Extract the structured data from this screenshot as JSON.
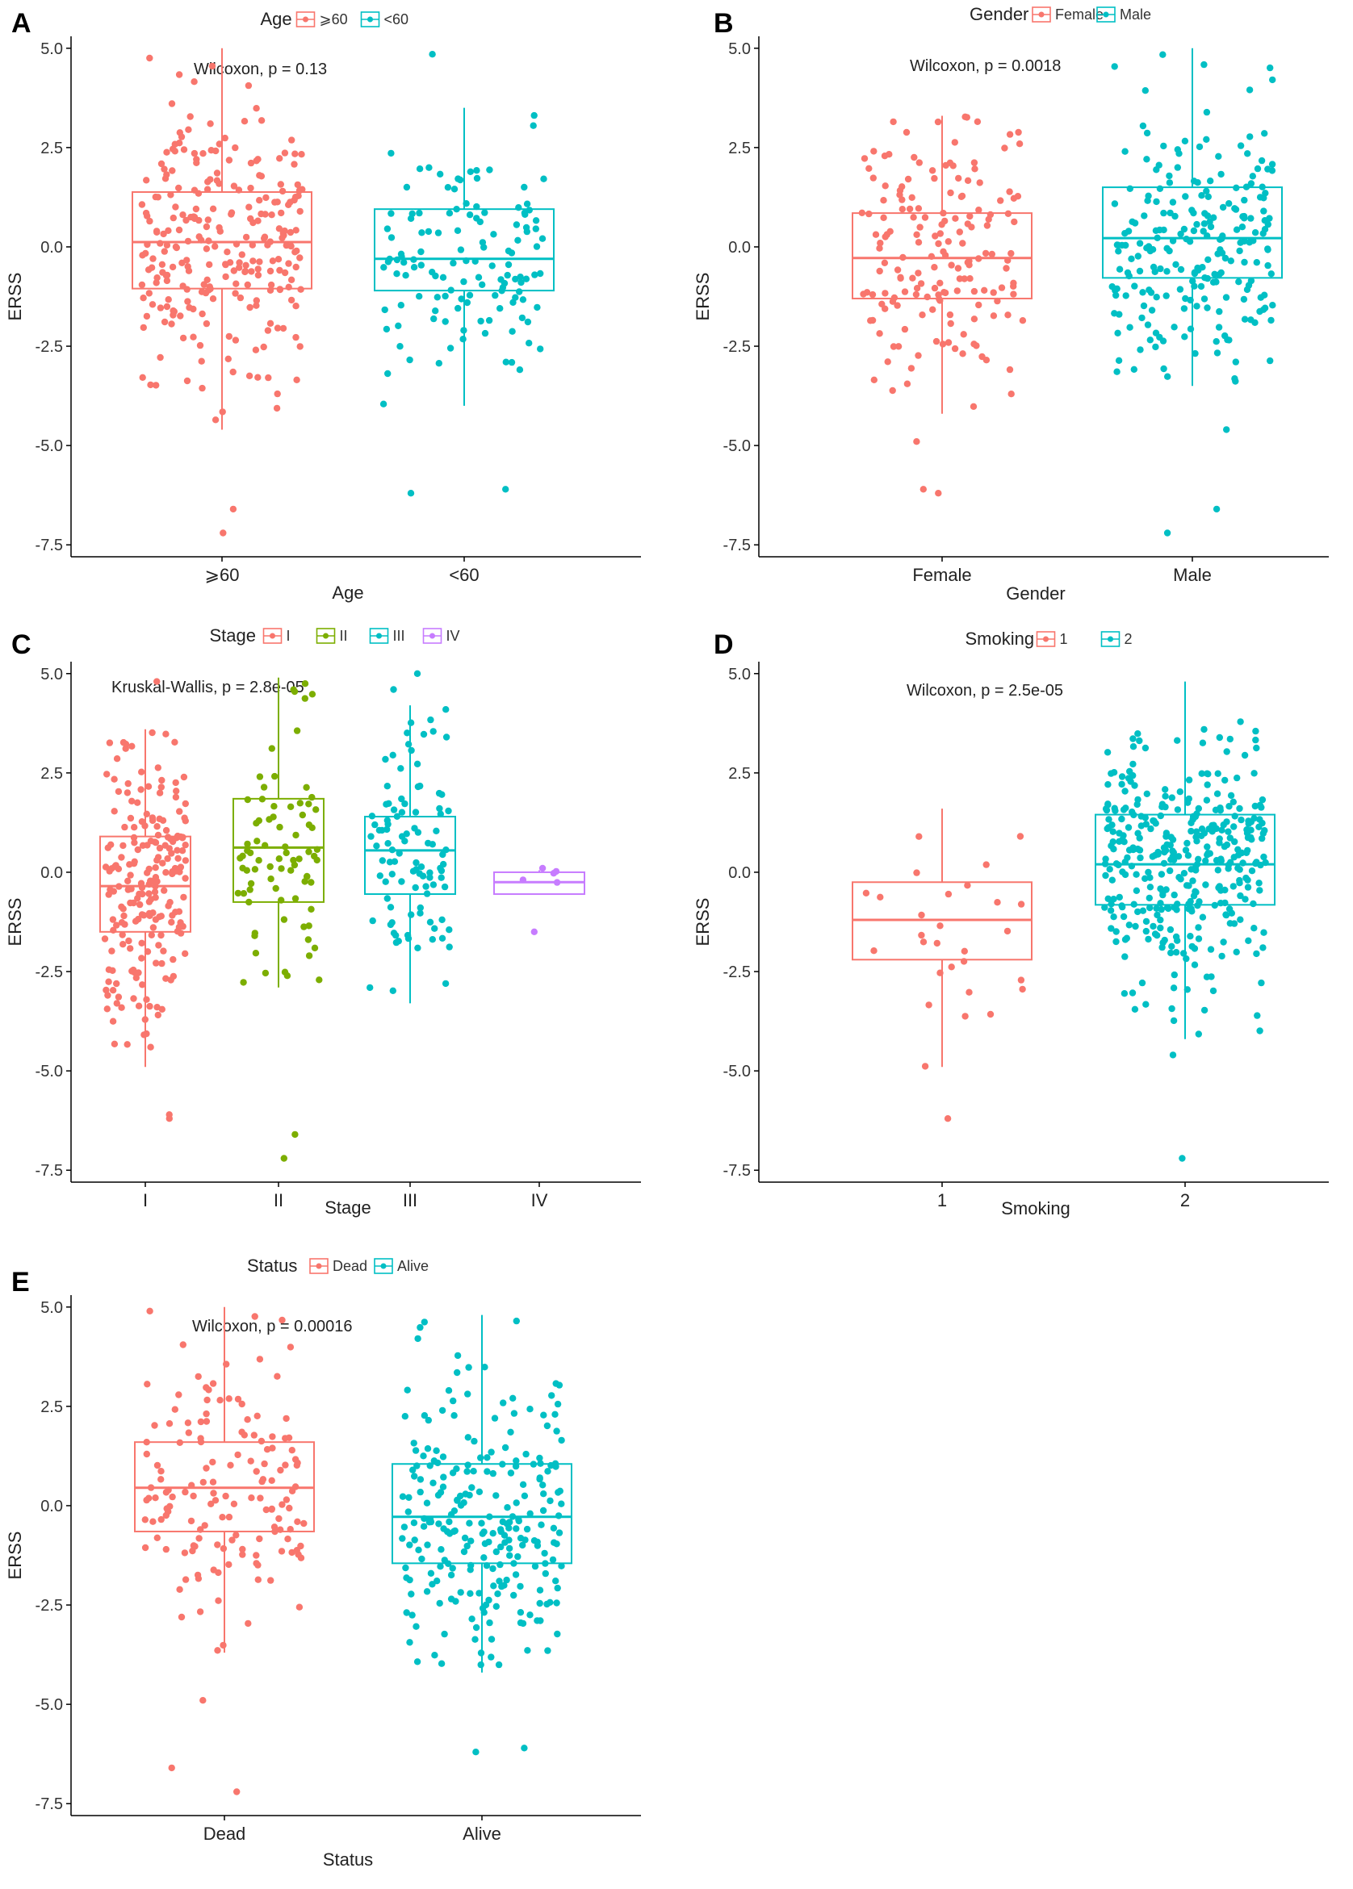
{
  "figure": {
    "colors": {
      "red": "#F8766D",
      "green": "#7CAE00",
      "cyan": "#00BFC4",
      "purple": "#C77CFF",
      "axis": "#000000"
    }
  },
  "chart_data": [
    {
      "panel": "A",
      "type": "box",
      "legend_title": "Age",
      "categories": [
        "⩾60",
        "<60"
      ],
      "colors": [
        "#F8766D",
        "#00BFC4"
      ],
      "xlabel": "Age",
      "ylabel": "ERSS",
      "ylim": [
        -7.8,
        5.3
      ],
      "yticks": [
        "5.0",
        "2.5",
        "0.0",
        "-2.5",
        "-5.0",
        "-7.5"
      ],
      "annotation": "Wilcoxon, p = 0.13",
      "boxes": [
        {
          "q1": -1.05,
          "median": 0.12,
          "q3": 1.38,
          "whisker_low": -4.6,
          "whisker_high": 5.0
        },
        {
          "q1": -1.1,
          "median": -0.3,
          "q3": 0.95,
          "whisker_low": -4.0,
          "whisker_high": 3.5
        }
      ],
      "n_points": [
        260,
        130
      ],
      "outliers": [
        [
          -6.6,
          -7.2
        ],
        [
          -6.2,
          -6.1,
          4.85
        ]
      ]
    },
    {
      "panel": "B",
      "type": "box",
      "legend_title": "Gender",
      "categories": [
        "Female",
        "Male"
      ],
      "colors": [
        "#F8766D",
        "#00BFC4"
      ],
      "xlabel": "Gender",
      "ylabel": "ERSS",
      "ylim": [
        -7.8,
        5.3
      ],
      "yticks": [
        "5.0",
        "2.5",
        "0.0",
        "-2.5",
        "-5.0",
        "-7.5"
      ],
      "annotation": "Wilcoxon, p = 0.0018",
      "boxes": [
        {
          "q1": -1.3,
          "median": -0.28,
          "q3": 0.85,
          "whisker_low": -4.2,
          "whisker_high": 3.3
        },
        {
          "q1": -0.78,
          "median": 0.22,
          "q3": 1.5,
          "whisker_low": -3.5,
          "whisker_high": 5.0
        }
      ],
      "n_points": [
        170,
        230
      ],
      "outliers": [
        [
          -6.2,
          -6.1,
          -4.9
        ],
        [
          -6.6,
          -7.2,
          -4.6
        ]
      ]
    },
    {
      "panel": "C",
      "type": "box",
      "legend_title": "Stage",
      "categories": [
        "I",
        "II",
        "III",
        "IV"
      ],
      "colors": [
        "#F8766D",
        "#7CAE00",
        "#00BFC4",
        "#C77CFF"
      ],
      "xlabel": "Stage",
      "ylabel": "ERSS",
      "ylim": [
        -7.8,
        5.3
      ],
      "yticks": [
        "5.0",
        "2.5",
        "0.0",
        "-2.5",
        "-5.0",
        "-7.5"
      ],
      "annotation": "Kruskal-Wallis, p = 2.8e-05",
      "boxes": [
        {
          "q1": -1.5,
          "median": -0.35,
          "q3": 0.9,
          "whisker_low": -4.9,
          "whisker_high": 3.6
        },
        {
          "q1": -0.75,
          "median": 0.62,
          "q3": 1.85,
          "whisker_low": -2.9,
          "whisker_high": 4.9
        },
        {
          "q1": -0.55,
          "median": 0.55,
          "q3": 1.4,
          "whisker_low": -3.3,
          "whisker_high": 4.2
        },
        {
          "q1": -0.55,
          "median": -0.25,
          "q3": 0.0,
          "whisker_low": -0.55,
          "whisker_high": 0.05
        }
      ],
      "n_points": [
        210,
        80,
        100,
        4
      ],
      "outliers": [
        [
          -6.2,
          -6.1,
          4.8
        ],
        [
          -7.2,
          -6.6
        ],
        [
          4.6,
          5.0
        ],
        [
          -1.5,
          0.1
        ]
      ]
    },
    {
      "panel": "D",
      "type": "box",
      "legend_title": "Smoking",
      "categories": [
        "1",
        "2"
      ],
      "colors": [
        "#F8766D",
        "#00BFC4"
      ],
      "xlabel": "Smoking",
      "ylabel": "ERSS",
      "ylim": [
        -7.8,
        5.3
      ],
      "yticks": [
        "5.0",
        "2.5",
        "0.0",
        "-2.5",
        "-5.0",
        "-7.5"
      ],
      "annotation": "Wilcoxon, p = 2.5e-05",
      "boxes": [
        {
          "q1": -2.2,
          "median": -1.2,
          "q3": -0.25,
          "whisker_low": -4.9,
          "whisker_high": 1.6
        },
        {
          "q1": -0.82,
          "median": 0.2,
          "q3": 1.45,
          "whisker_low": -4.2,
          "whisker_high": 4.8
        }
      ],
      "n_points": [
        28,
        360
      ],
      "outliers": [
        [
          -6.2
        ],
        [
          -7.2,
          -4.6
        ]
      ]
    },
    {
      "panel": "E",
      "type": "box",
      "legend_title": "Status",
      "categories": [
        "Dead",
        "Alive"
      ],
      "colors": [
        "#F8766D",
        "#00BFC4"
      ],
      "xlabel": "Status",
      "ylabel": "ERSS",
      "ylim": [
        -7.8,
        5.3
      ],
      "yticks": [
        "5.0",
        "2.5",
        "0.0",
        "-2.5",
        "-5.0",
        "-7.5"
      ],
      "annotation": "Wilcoxon, p = 0.00016",
      "boxes": [
        {
          "q1": -0.65,
          "median": 0.45,
          "q3": 1.6,
          "whisker_low": -3.7,
          "whisker_high": 5.0
        },
        {
          "q1": -1.45,
          "median": -0.28,
          "q3": 1.05,
          "whisker_low": -4.2,
          "whisker_high": 4.8
        }
      ],
      "n_points": [
        150,
        250
      ],
      "outliers": [
        [
          -6.6,
          -7.2,
          -4.9
        ],
        [
          -6.2,
          -6.1
        ]
      ]
    }
  ]
}
